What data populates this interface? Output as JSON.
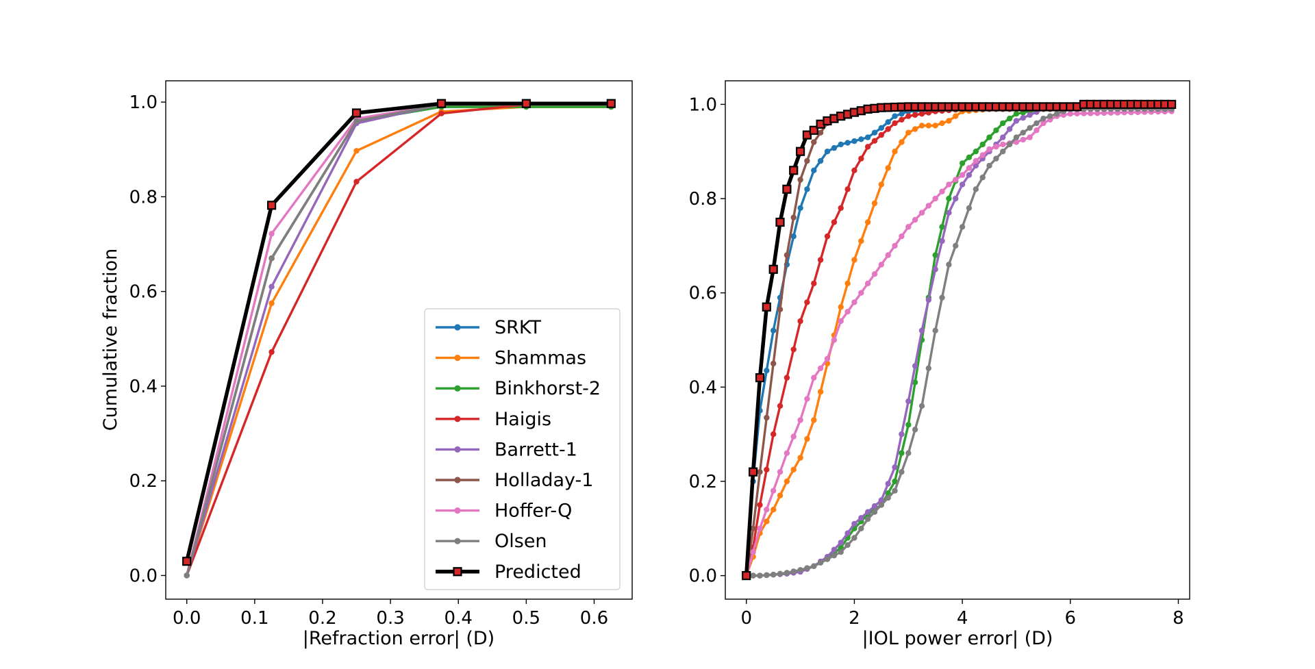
{
  "chart_data": [
    {
      "type": "line",
      "xlabel": "|Refraction error| (D)",
      "ylabel": "Cumulative fraction",
      "xlim": [
        -0.031,
        0.656
      ],
      "ylim": [
        -0.05,
        1.045
      ],
      "xticks": [
        "0.0",
        "0.1",
        "0.2",
        "0.3",
        "0.4",
        "0.5",
        "0.6"
      ],
      "yticks": [
        "0.0",
        "0.2",
        "0.4",
        "0.6",
        "0.8",
        "1.0"
      ],
      "grid": false,
      "legend": {
        "placement": "lower-right",
        "entries": [
          "SRKT",
          "Shammas",
          "Binkhorst-2",
          "Haigis",
          "Barrett-1",
          "Holladay-1",
          "Hoffer-Q",
          "Olsen",
          "Predicted"
        ]
      },
      "x": [
        0.0,
        0.125,
        0.25,
        0.375,
        0.5,
        0.625
      ],
      "series": [
        {
          "name": "SRKT",
          "color": "#1f77b4",
          "values": [
            0.0,
            0.67,
            0.96,
            0.99,
            0.99,
            0.99
          ]
        },
        {
          "name": "Shammas",
          "color": "#ff7f0e",
          "values": [
            0.0,
            0.575,
            0.897,
            0.98,
            0.99,
            0.99
          ]
        },
        {
          "name": "Binkhorst-2",
          "color": "#2ca02c",
          "values": [
            0.0,
            0.67,
            0.96,
            0.99,
            0.99,
            0.99
          ]
        },
        {
          "name": "Haigis",
          "color": "#d62728",
          "values": [
            0.0,
            0.472,
            0.832,
            0.976,
            0.995,
            0.995
          ]
        },
        {
          "name": "Barrett-1",
          "color": "#9467bd",
          "values": [
            0.0,
            0.61,
            0.955,
            0.995,
            0.995,
            0.995
          ]
        },
        {
          "name": "Holladay-1",
          "color": "#8c564b",
          "values": [
            0.0,
            0.67,
            0.96,
            0.995,
            0.995,
            0.995
          ]
        },
        {
          "name": "Hoffer-Q",
          "color": "#e377c2",
          "values": [
            0.0,
            0.722,
            0.965,
            0.995,
            0.995,
            0.995
          ]
        },
        {
          "name": "Olsen",
          "color": "#7f7f7f",
          "values": [
            0.0,
            0.67,
            0.96,
            0.995,
            0.995,
            0.995
          ]
        },
        {
          "name": "Predicted",
          "color": "#000000",
          "marker": "square",
          "marker_face": "#d62728",
          "values": [
            0.03,
            0.782,
            0.977,
            0.997,
            0.997,
            0.997
          ]
        }
      ]
    },
    {
      "type": "line",
      "xlabel": "|IOL power error| (D)",
      "ylabel": "",
      "xlim": [
        -0.39,
        8.21
      ],
      "ylim": [
        -0.05,
        1.05
      ],
      "xticks": [
        "0",
        "2",
        "4",
        "6",
        "8"
      ],
      "yticks": [
        "0.0",
        "0.2",
        "0.4",
        "0.6",
        "0.8",
        "1.0"
      ],
      "grid": false,
      "x_step": 0.125,
      "point_count": 64,
      "series": [
        {
          "name": "SRKT",
          "color": "#1f77b4",
          "anchors": [
            [
              0,
              0
            ],
            [
              0.125,
              0.2
            ],
            [
              0.25,
              0.35
            ],
            [
              0.5,
              0.52
            ],
            [
              0.75,
              0.66
            ],
            [
              1.0,
              0.78
            ],
            [
              1.25,
              0.86
            ],
            [
              1.5,
              0.9
            ],
            [
              1.75,
              0.915
            ],
            [
              2.0,
              0.922
            ],
            [
              2.25,
              0.93
            ],
            [
              2.5,
              0.95
            ],
            [
              2.75,
              0.975
            ],
            [
              3.0,
              0.985
            ],
            [
              4.0,
              0.99
            ],
            [
              7.875,
              0.99
            ]
          ]
        },
        {
          "name": "Shammas",
          "color": "#ff7f0e",
          "anchors": [
            [
              0,
              0
            ],
            [
              0.125,
              0.04
            ],
            [
              0.25,
              0.09
            ],
            [
              0.5,
              0.14
            ],
            [
              0.75,
              0.2
            ],
            [
              1.0,
              0.25
            ],
            [
              1.25,
              0.33
            ],
            [
              1.5,
              0.45
            ],
            [
              1.75,
              0.57
            ],
            [
              2.0,
              0.67
            ],
            [
              2.25,
              0.75
            ],
            [
              2.5,
              0.83
            ],
            [
              2.75,
              0.9
            ],
            [
              3.0,
              0.94
            ],
            [
              3.25,
              0.955
            ],
            [
              3.5,
              0.955
            ],
            [
              3.75,
              0.965
            ],
            [
              4.0,
              0.985
            ],
            [
              4.5,
              0.99
            ],
            [
              7.875,
              0.99
            ]
          ]
        },
        {
          "name": "Binkhorst-2",
          "color": "#2ca02c",
          "anchors": [
            [
              0,
              0
            ],
            [
              0.25,
              0
            ],
            [
              0.5,
              0.002
            ],
            [
              0.75,
              0.004
            ],
            [
              1.0,
              0.01
            ],
            [
              1.25,
              0.02
            ],
            [
              1.5,
              0.035
            ],
            [
              1.75,
              0.06
            ],
            [
              2.0,
              0.1
            ],
            [
              2.25,
              0.13
            ],
            [
              2.5,
              0.15
            ],
            [
              2.75,
              0.2
            ],
            [
              3.0,
              0.32
            ],
            [
              3.25,
              0.5
            ],
            [
              3.5,
              0.68
            ],
            [
              3.75,
              0.8
            ],
            [
              4.0,
              0.875
            ],
            [
              4.25,
              0.9
            ],
            [
              4.5,
              0.93
            ],
            [
              4.75,
              0.96
            ],
            [
              5.0,
              0.98
            ],
            [
              5.5,
              0.99
            ],
            [
              7.875,
              0.99
            ]
          ]
        },
        {
          "name": "Haigis",
          "color": "#d62728",
          "anchors": [
            [
              0,
              0
            ],
            [
              0.125,
              0.06
            ],
            [
              0.25,
              0.15
            ],
            [
              0.5,
              0.3
            ],
            [
              0.75,
              0.42
            ],
            [
              1.0,
              0.54
            ],
            [
              1.25,
              0.62
            ],
            [
              1.5,
              0.72
            ],
            [
              1.75,
              0.78
            ],
            [
              2.0,
              0.86
            ],
            [
              2.25,
              0.91
            ],
            [
              2.5,
              0.935
            ],
            [
              2.75,
              0.96
            ],
            [
              3.0,
              0.975
            ],
            [
              3.5,
              0.985
            ],
            [
              4.0,
              0.99
            ],
            [
              7.875,
              0.99
            ]
          ]
        },
        {
          "name": "Barrett-1",
          "color": "#9467bd",
          "anchors": [
            [
              0,
              0
            ],
            [
              0.25,
              0
            ],
            [
              0.5,
              0.002
            ],
            [
              0.75,
              0.004
            ],
            [
              1.0,
              0.008
            ],
            [
              1.25,
              0.02
            ],
            [
              1.5,
              0.04
            ],
            [
              1.75,
              0.07
            ],
            [
              2.0,
              0.11
            ],
            [
              2.25,
              0.135
            ],
            [
              2.5,
              0.16
            ],
            [
              2.75,
              0.23
            ],
            [
              3.0,
              0.37
            ],
            [
              3.25,
              0.52
            ],
            [
              3.5,
              0.65
            ],
            [
              3.75,
              0.77
            ],
            [
              4.0,
              0.83
            ],
            [
              4.25,
              0.87
            ],
            [
              4.5,
              0.9
            ],
            [
              4.75,
              0.93
            ],
            [
              5.0,
              0.965
            ],
            [
              5.5,
              0.99
            ],
            [
              7.875,
              0.99
            ]
          ]
        },
        {
          "name": "Holladay-1",
          "color": "#8c564b",
          "anchors": [
            [
              0,
              0
            ],
            [
              0.125,
              0.1
            ],
            [
              0.25,
              0.22
            ],
            [
              0.5,
              0.45
            ],
            [
              0.75,
              0.68
            ],
            [
              1.0,
              0.84
            ],
            [
              1.25,
              0.92
            ],
            [
              1.5,
              0.96
            ],
            [
              1.75,
              0.975
            ],
            [
              2.0,
              0.983
            ],
            [
              2.5,
              0.99
            ],
            [
              7.875,
              0.99
            ]
          ]
        },
        {
          "name": "Hoffer-Q",
          "color": "#e377c2",
          "anchors": [
            [
              0,
              0
            ],
            [
              0.125,
              0.05
            ],
            [
              0.25,
              0.1
            ],
            [
              0.5,
              0.18
            ],
            [
              0.75,
              0.26
            ],
            [
              1.0,
              0.33
            ],
            [
              1.25,
              0.42
            ],
            [
              1.5,
              0.46
            ],
            [
              1.75,
              0.54
            ],
            [
              2.0,
              0.58
            ],
            [
              2.25,
              0.62
            ],
            [
              2.5,
              0.66
            ],
            [
              2.75,
              0.7
            ],
            [
              3.0,
              0.74
            ],
            [
              3.25,
              0.77
            ],
            [
              3.5,
              0.8
            ],
            [
              3.75,
              0.83
            ],
            [
              4.0,
              0.85
            ],
            [
              4.25,
              0.88
            ],
            [
              4.5,
              0.905
            ],
            [
              4.75,
              0.915
            ],
            [
              5.0,
              0.92
            ],
            [
              5.25,
              0.93
            ],
            [
              5.5,
              0.96
            ],
            [
              5.75,
              0.975
            ],
            [
              6.0,
              0.98
            ],
            [
              7.875,
              0.985
            ]
          ]
        },
        {
          "name": "Olsen",
          "color": "#7f7f7f",
          "anchors": [
            [
              0,
              0
            ],
            [
              0.25,
              0
            ],
            [
              0.5,
              0.002
            ],
            [
              0.75,
              0.006
            ],
            [
              1.0,
              0.012
            ],
            [
              1.25,
              0.02
            ],
            [
              1.5,
              0.035
            ],
            [
              1.75,
              0.05
            ],
            [
              2.0,
              0.08
            ],
            [
              2.25,
              0.12
            ],
            [
              2.5,
              0.15
            ],
            [
              2.75,
              0.18
            ],
            [
              3.0,
              0.26
            ],
            [
              3.25,
              0.36
            ],
            [
              3.5,
              0.52
            ],
            [
              3.75,
              0.66
            ],
            [
              4.0,
              0.74
            ],
            [
              4.25,
              0.82
            ],
            [
              4.5,
              0.87
            ],
            [
              4.75,
              0.9
            ],
            [
              5.0,
              0.93
            ],
            [
              5.25,
              0.95
            ],
            [
              5.5,
              0.97
            ],
            [
              6.0,
              0.99
            ],
            [
              7.875,
              0.99
            ]
          ]
        },
        {
          "name": "Predicted",
          "color": "#000000",
          "marker": "square",
          "marker_face": "#d62728",
          "anchors": [
            [
              0,
              0
            ],
            [
              0.125,
              0.22
            ],
            [
              0.25,
              0.42
            ],
            [
              0.375,
              0.57
            ],
            [
              0.5,
              0.65
            ],
            [
              0.625,
              0.75
            ],
            [
              0.75,
              0.82
            ],
            [
              0.875,
              0.86
            ],
            [
              1.0,
              0.9
            ],
            [
              1.125,
              0.935
            ],
            [
              1.25,
              0.945
            ],
            [
              1.375,
              0.958
            ],
            [
              1.5,
              0.965
            ],
            [
              1.75,
              0.975
            ],
            [
              2.0,
              0.983
            ],
            [
              2.25,
              0.99
            ],
            [
              2.5,
              0.993
            ],
            [
              3.0,
              0.995
            ],
            [
              6.125,
              0.995
            ],
            [
              6.25,
              1.0
            ],
            [
              7.875,
              1.0
            ]
          ]
        }
      ]
    }
  ]
}
